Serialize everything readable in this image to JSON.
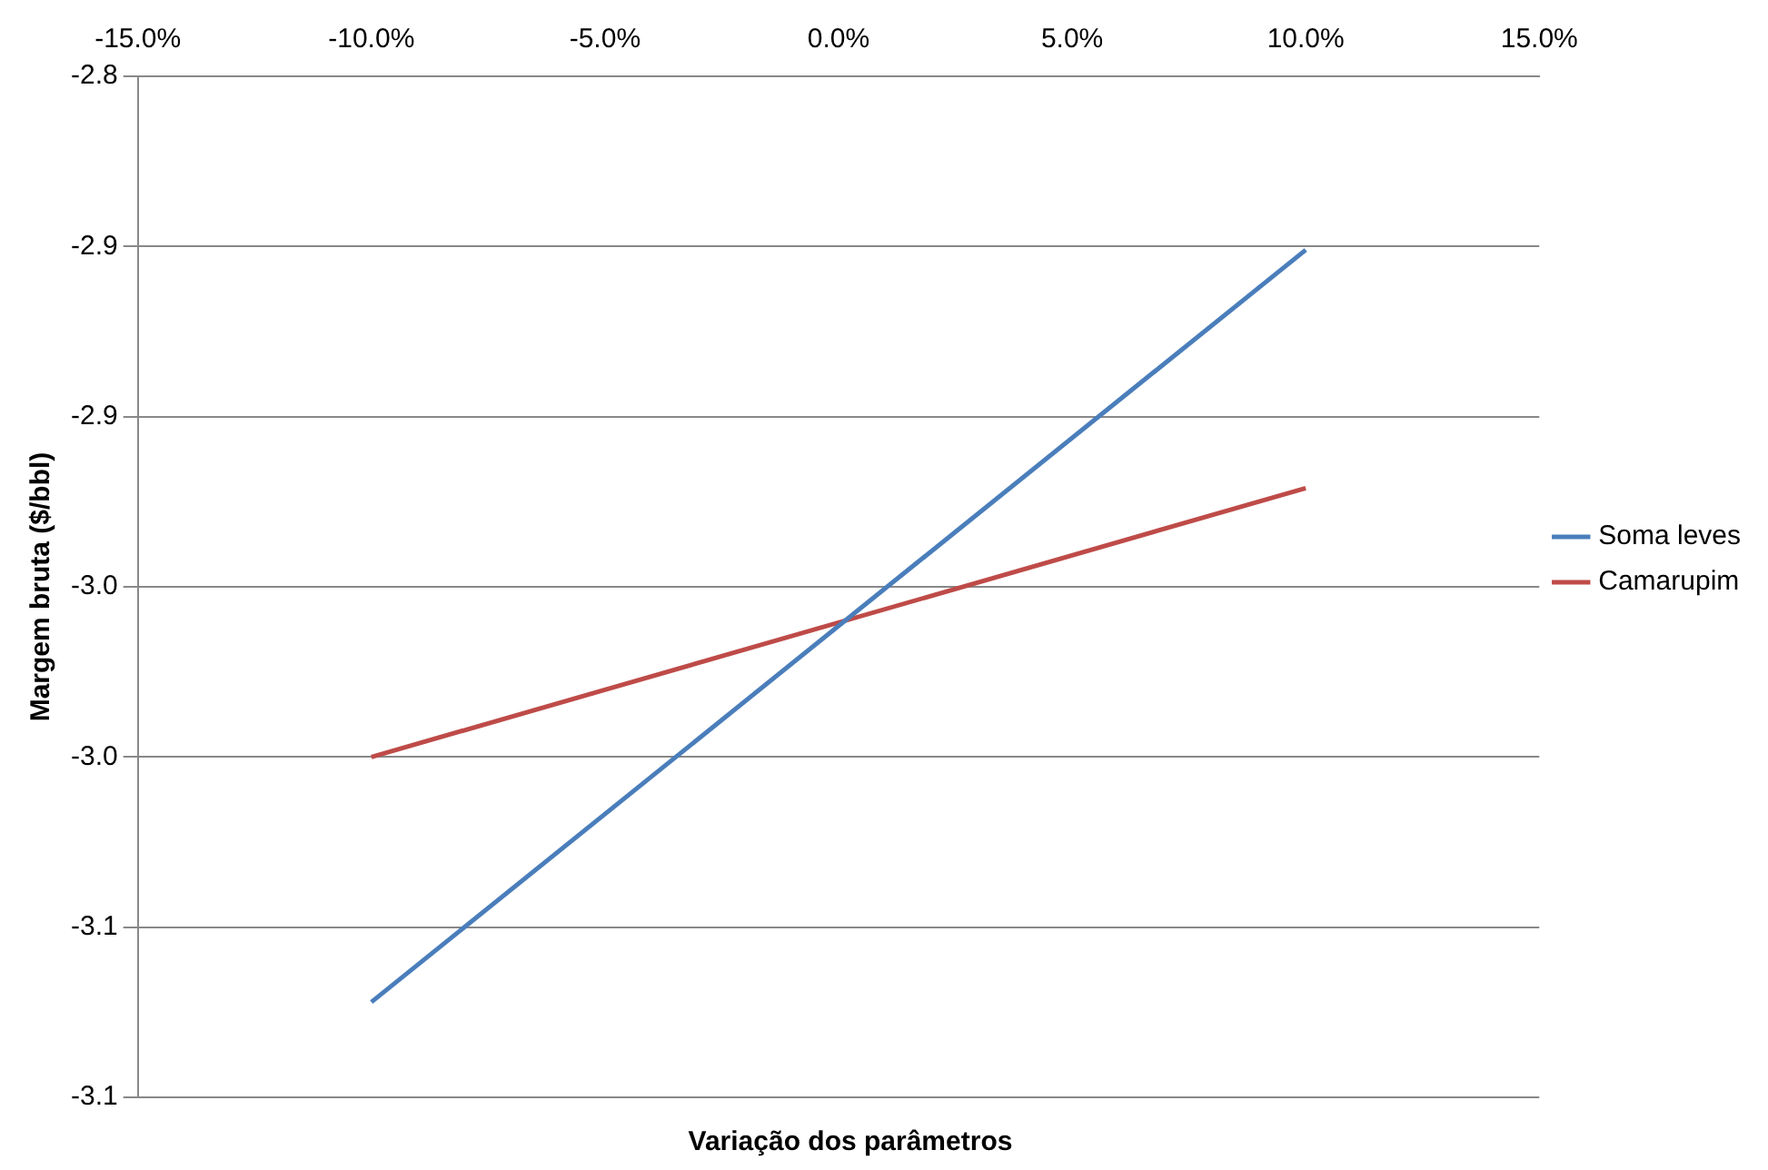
{
  "chart_data": {
    "type": "line",
    "xlabel": "Variação dos parâmetros",
    "ylabel": "Margem bruta ($/bbl)",
    "x": [
      -10,
      10
    ],
    "series": [
      {
        "name": "Soma leves",
        "color": "#4a7ebb",
        "values": [
          -3.072,
          -2.851
        ]
      },
      {
        "name": "Camarupim",
        "color": "#be4b48",
        "values": [
          -3.0,
          -2.921
        ]
      }
    ],
    "xlim": [
      -15,
      15
    ],
    "xticks": [
      {
        "value": -15,
        "label": "-15.0%"
      },
      {
        "value": -10,
        "label": "-10.0%"
      },
      {
        "value": -5,
        "label": "-5.0%"
      },
      {
        "value": 0,
        "label": "0.0%"
      },
      {
        "value": 5,
        "label": "5.0%"
      },
      {
        "value": 10,
        "label": "10.0%"
      },
      {
        "value": 15,
        "label": "15.0%"
      }
    ],
    "ylim": [
      -3.1,
      -2.8
    ],
    "yticks": [
      {
        "value": -3.1,
        "label": "-3.1"
      },
      {
        "value": -3.05,
        "label": "-3.1"
      },
      {
        "value": -3.0,
        "label": "-3.0"
      },
      {
        "value": -2.95,
        "label": "-3.0"
      },
      {
        "value": -2.9,
        "label": "-2.9"
      },
      {
        "value": -2.85,
        "label": "-2.9"
      },
      {
        "value": -2.8,
        "label": "-2.8"
      }
    ],
    "grid": "y",
    "legend": "right",
    "marker": "none",
    "line_style": "solid"
  }
}
